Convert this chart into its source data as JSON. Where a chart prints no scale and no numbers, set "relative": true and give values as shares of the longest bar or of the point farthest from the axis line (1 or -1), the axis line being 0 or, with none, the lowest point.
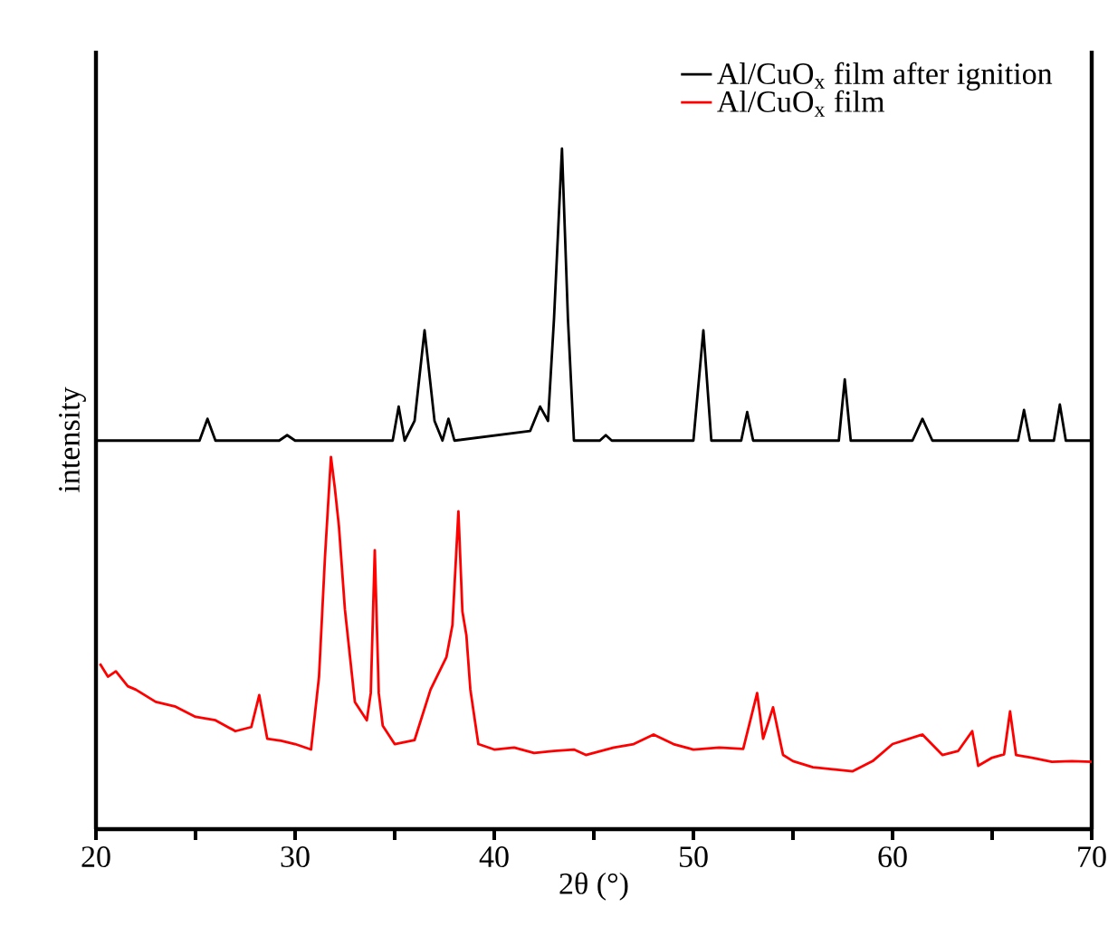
{
  "chart_data": {
    "type": "line",
    "xlabel": "2θ (°)",
    "ylabel": "intensity",
    "relative": true,
    "legend": "top right",
    "marker": "none",
    "line_style": "solid",
    "xlim": [
      20,
      70
    ],
    "xticks": [
      20,
      {
        "value": 25,
        "label": null
      },
      30,
      {
        "value": 35,
        "label": null
      },
      40,
      {
        "value": 45,
        "label": null
      },
      50,
      {
        "value": 55,
        "label": null
      },
      60,
      {
        "value": 65,
        "label": null
      },
      70
    ],
    "series": [
      {
        "name": "Al/CuO$_{x}$ film after ignition",
        "color": "#000000",
        "x": [
          20,
          25.2,
          25.6,
          26.0,
          29.2,
          29.6,
          30.0,
          34.9,
          35.2,
          35.5,
          36.0,
          36.5,
          37.0,
          37.4,
          37.7,
          38.0,
          41.8,
          42.3,
          42.7,
          43.0,
          43.4,
          43.7,
          44.0,
          45.3,
          45.6,
          45.9,
          50.0,
          50.5,
          50.9,
          52.4,
          52.7,
          53.0,
          57.3,
          57.6,
          57.9,
          61.0,
          61.5,
          62.0,
          66.3,
          66.6,
          66.9,
          68.1,
          68.4,
          68.7,
          70
        ],
        "values": [
          0.571,
          0.571,
          0.603,
          0.571,
          0.571,
          0.579,
          0.571,
          0.571,
          0.621,
          0.571,
          0.6,
          0.733,
          0.6,
          0.571,
          0.603,
          0.571,
          0.585,
          0.621,
          0.6,
          0.75,
          1.0,
          0.75,
          0.571,
          0.571,
          0.579,
          0.571,
          0.571,
          0.733,
          0.571,
          0.571,
          0.613,
          0.571,
          0.571,
          0.661,
          0.571,
          0.571,
          0.603,
          0.571,
          0.571,
          0.616,
          0.571,
          0.571,
          0.624,
          0.571,
          0.571
        ]
      },
      {
        "name": "Al/CuO$_{x}$ film",
        "color": "#ff0000",
        "x": [
          20.2,
          20.6,
          21,
          21.6,
          22,
          23,
          24,
          25,
          26,
          27,
          27.8,
          28.2,
          28.6,
          29.3,
          30,
          30.8,
          31.2,
          31.5,
          31.8,
          32.0,
          32.2,
          32.5,
          33.0,
          33.6,
          33.8,
          34.0,
          34.2,
          34.4,
          35,
          36,
          36.8,
          37.6,
          37.9,
          38.2,
          38.4,
          38.6,
          38.8,
          39.2,
          40,
          41,
          42,
          43,
          44,
          44.6,
          46,
          47,
          48,
          49,
          50,
          51.3,
          52.5,
          53.2,
          53.5,
          54.0,
          54.5,
          55,
          56,
          57,
          58,
          59,
          60,
          61.5,
          62.5,
          63.3,
          64.0,
          64.3,
          65,
          65.6,
          65.9,
          66.2,
          67,
          68,
          69,
          70
        ],
        "values": [
          0.243,
          0.224,
          0.232,
          0.21,
          0.205,
          0.187,
          0.18,
          0.165,
          0.16,
          0.144,
          0.15,
          0.197,
          0.133,
          0.13,
          0.125,
          0.117,
          0.224,
          0.4,
          0.547,
          0.5,
          0.445,
          0.323,
          0.187,
          0.16,
          0.2,
          0.41,
          0.2,
          0.152,
          0.125,
          0.131,
          0.205,
          0.253,
          0.3,
          0.467,
          0.32,
          0.285,
          0.205,
          0.125,
          0.117,
          0.12,
          0.112,
          0.115,
          0.117,
          0.109,
          0.12,
          0.125,
          0.139,
          0.125,
          0.117,
          0.12,
          0.118,
          0.2,
          0.133,
          0.179,
          0.109,
          0.1,
          0.091,
          0.088,
          0.085,
          0.1,
          0.125,
          0.139,
          0.109,
          0.115,
          0.144,
          0.093,
          0.105,
          0.11,
          0.173,
          0.109,
          0.105,
          0.099,
          0.1,
          0.099
        ]
      }
    ]
  }
}
